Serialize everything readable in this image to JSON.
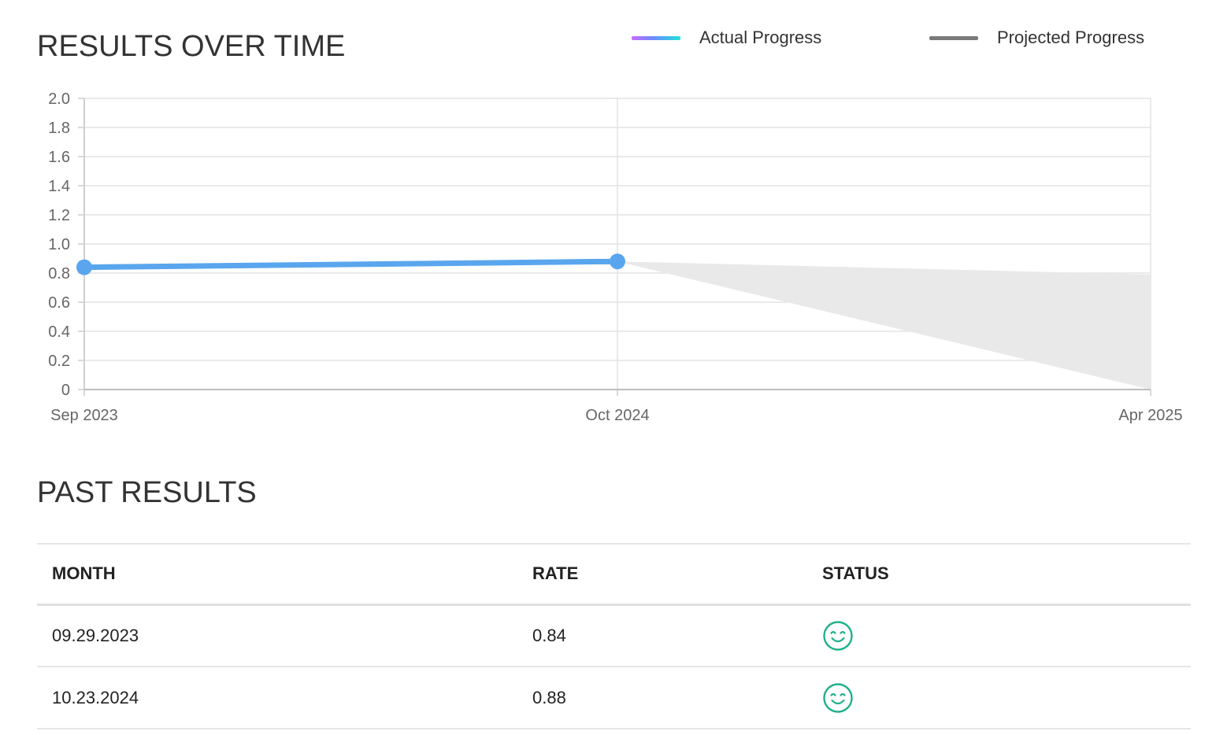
{
  "chart_section": {
    "title": "RESULTS OVER TIME"
  },
  "legend": {
    "actual_label": "Actual Progress",
    "projected_label": "Projected Progress"
  },
  "chart_data": {
    "type": "line",
    "x_ticks": [
      "Sep 2023",
      "Oct 2024",
      "Apr 2025"
    ],
    "y_ticks": [
      "2.0",
      "1.8",
      "1.6",
      "1.4",
      "1.2",
      "1.0",
      "0.8",
      "0.6",
      "0.4",
      "0.2",
      "0"
    ],
    "ylim": [
      0,
      2.0
    ],
    "grid": true,
    "legend_position": "top-right",
    "series": [
      {
        "name": "Actual Progress",
        "x": [
          "Sep 2023",
          "Oct 2024"
        ],
        "y": [
          0.84,
          0.88
        ],
        "color": "#5aa6ee"
      },
      {
        "name": "Projected Progress",
        "x": [
          "Oct 2024",
          "Apr 2025"
        ],
        "y_upper": [
          0.88,
          0.79
        ],
        "y_lower": [
          0.88,
          0.0
        ],
        "color": "#e9e9e9"
      }
    ]
  },
  "table_section": {
    "title": "PAST RESULTS",
    "columns": [
      "MONTH",
      "RATE",
      "STATUS"
    ],
    "rows": [
      {
        "month": "09.29.2023",
        "rate": "0.84",
        "status": "smile-icon"
      },
      {
        "month": "10.23.2024",
        "rate": "0.88",
        "status": "smile-icon"
      }
    ]
  },
  "colors": {
    "actual_line": "#5aa6ee",
    "projected_fill": "#e9e9e9",
    "status_good": "#1fb08a",
    "grid": "#e4e4e4"
  }
}
